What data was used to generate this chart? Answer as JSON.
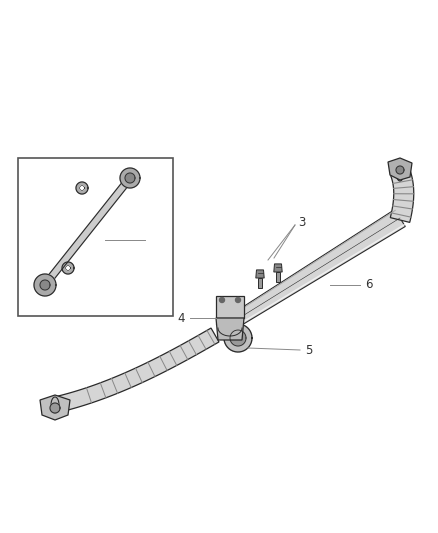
{
  "bg_color": "#ffffff",
  "line_color": "#2a2a2a",
  "label_color": "#333333",
  "fig_width": 4.38,
  "fig_height": 5.33,
  "dpi": 100,
  "bar_color": "#d8d8d8",
  "bar_edge": "#2a2a2a",
  "shadow_color": "#b0b0b0",
  "clamp_color": "#c0c0c0",
  "texture_color": "#888888"
}
